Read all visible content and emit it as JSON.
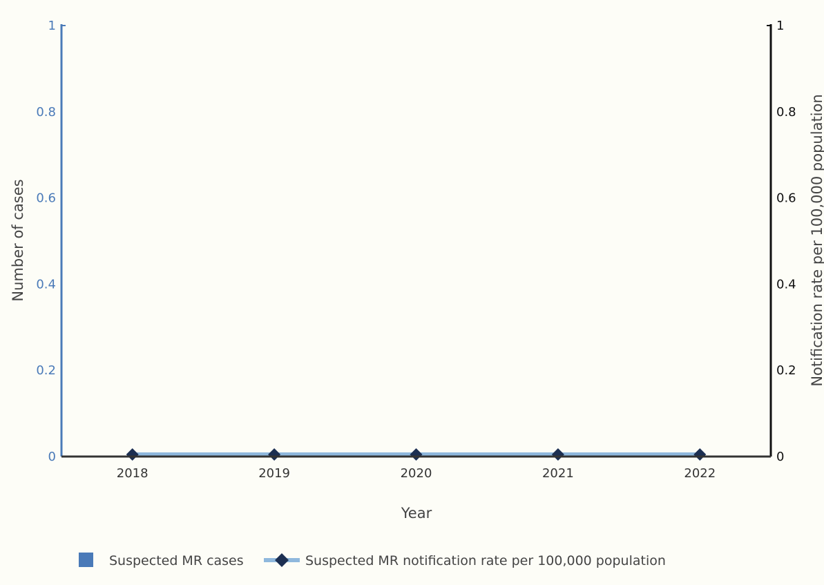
{
  "chart_data": {
    "type": "bar",
    "categories": [
      "2018",
      "2019",
      "2020",
      "2021",
      "2022"
    ],
    "series": [
      {
        "name": "Suspected MR cases",
        "type": "bar",
        "axis": "left",
        "values": [
          0,
          0,
          0,
          0,
          0
        ],
        "color": "#4a7ab8"
      },
      {
        "name": "Suspected MR notification rate per 100,000 population",
        "type": "line",
        "axis": "right",
        "values": [
          0,
          0,
          0,
          0,
          0
        ],
        "color": "#8fb8dd",
        "marker": "diamond",
        "marker_color": "#1c2f52"
      }
    ],
    "xlabel": "Year",
    "ylabel": "Number of cases",
    "y2label": "Notification rate per 100,000 population",
    "ylim": [
      0,
      1
    ],
    "y2lim": [
      0,
      1
    ],
    "yticks": [
      "0",
      "0.2",
      "0.4",
      "0.6",
      "0.8",
      "1"
    ],
    "y2ticks": [
      "0",
      "0.2",
      "0.4",
      "0.6",
      "0.8",
      "1"
    ],
    "grid": false,
    "legend_position": "bottom",
    "colors": {
      "background": "#fdfdf7",
      "left_axis": "#4a7ab8",
      "right_axis": "#111111",
      "x_axis": "#333333"
    }
  }
}
